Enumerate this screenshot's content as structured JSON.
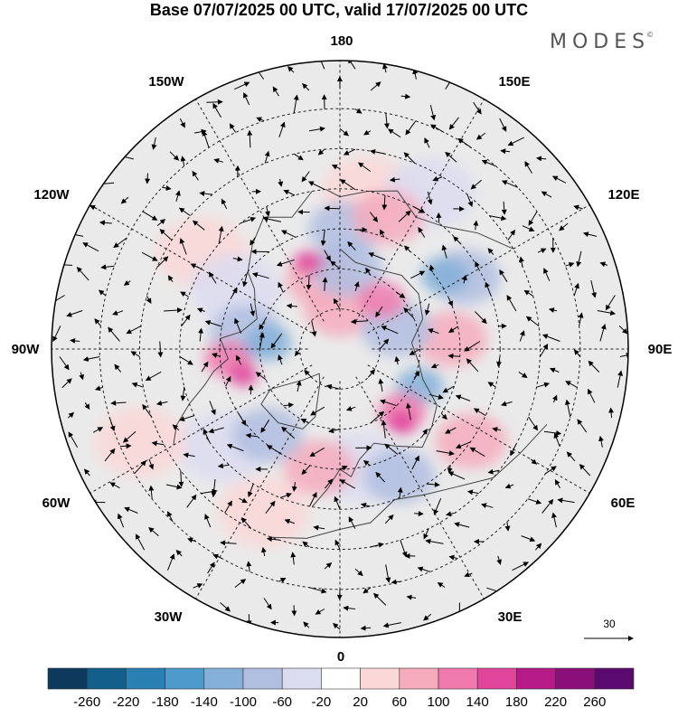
{
  "title": "Base 07/07/2025 00 UTC, valid 17/07/2025 00 UTC",
  "brand": "MODES",
  "brand_mark": "©",
  "longitude_labels": {
    "top": "180",
    "top_left": "150W",
    "top_right": "150E",
    "upper_left": "120W",
    "upper_right": "120E",
    "left": "90W",
    "right": "90E",
    "lower_left": "60W",
    "lower_right": "60E",
    "bottom_left": "30W",
    "bottom_right": "30E",
    "bottom": "0"
  },
  "reference_vector": {
    "label": "30"
  },
  "colorbar": {
    "colors": [
      "#0d3a5c",
      "#135f8c",
      "#2a7fb3",
      "#4d9bcc",
      "#85b0d8",
      "#b0bee0",
      "#dcdcf0",
      "#ffffff",
      "#fbd7d7",
      "#f6abbd",
      "#f07aae",
      "#e0449b",
      "#b51a86",
      "#8a0f7a",
      "#5a0a6e"
    ],
    "tick_labels": [
      "-260",
      "-220",
      "-180",
      "-140",
      "-100",
      "-60",
      "-20",
      "20",
      "60",
      "100",
      "140",
      "180",
      "220",
      "260"
    ]
  },
  "anomaly_colors": {
    "neg_light": "#dcdcf0",
    "neg_mid": "#b0bee0",
    "neg_strong": "#85b0d8",
    "pos_light": "#fbd7d7",
    "pos_mid": "#f6abbd",
    "pos_strong": "#f07aae",
    "pos_max": "#e0449b"
  },
  "anomaly_blobs": [
    {
      "polarity": "pos",
      "level": "mid",
      "lon": -165,
      "colat": 18
    },
    {
      "polarity": "pos",
      "level": "max",
      "lon": -160,
      "colat": 23
    },
    {
      "polarity": "pos",
      "level": "mid",
      "lon": -180,
      "colat": 10
    },
    {
      "polarity": "neg",
      "level": "mid",
      "lon": 175,
      "colat": 20
    },
    {
      "polarity": "neg",
      "level": "mid",
      "lon": 178,
      "colat": 30
    },
    {
      "polarity": "pos",
      "level": "mid",
      "lon": 160,
      "colat": 35
    },
    {
      "polarity": "pos",
      "level": "light",
      "lon": 170,
      "colat": 40
    },
    {
      "polarity": "pos",
      "level": "strong",
      "lon": 140,
      "colat": 16
    },
    {
      "polarity": "neg",
      "level": "strong",
      "lon": 125,
      "colat": 32
    },
    {
      "polarity": "neg",
      "level": "mid",
      "lon": 120,
      "colat": 36
    },
    {
      "polarity": "pos",
      "level": "mid",
      "lon": 95,
      "colat": 28
    },
    {
      "polarity": "neg",
      "level": "mid",
      "lon": 110,
      "colat": 15
    },
    {
      "polarity": "neg",
      "level": "strong",
      "lon": 65,
      "colat": 22
    },
    {
      "polarity": "pos",
      "level": "strong",
      "lon": 45,
      "colat": 22
    },
    {
      "polarity": "pos",
      "level": "max",
      "lon": 40,
      "colat": 24
    },
    {
      "polarity": "pos",
      "level": "mid",
      "lon": 55,
      "colat": 40
    },
    {
      "polarity": "neg",
      "level": "mid",
      "lon": 25,
      "colat": 35
    },
    {
      "polarity": "neg",
      "level": "light",
      "lon": 10,
      "colat": 30
    },
    {
      "polarity": "pos",
      "level": "mid",
      "lon": -10,
      "colat": 30
    },
    {
      "polarity": "pos",
      "level": "light",
      "lon": -25,
      "colat": 45
    },
    {
      "polarity": "neg",
      "level": "mid",
      "lon": -40,
      "colat": 28
    },
    {
      "polarity": "neg",
      "level": "light",
      "lon": -50,
      "colat": 38
    },
    {
      "polarity": "pos",
      "level": "max",
      "lon": -75,
      "colat": 25
    },
    {
      "polarity": "pos",
      "level": "strong",
      "lon": -85,
      "colat": 28
    },
    {
      "polarity": "neg",
      "level": "strong",
      "lon": -95,
      "colat": 18
    },
    {
      "polarity": "neg",
      "level": "mid",
      "lon": -100,
      "colat": 24
    },
    {
      "polarity": "pos",
      "level": "light",
      "lon": -125,
      "colat": 42
    },
    {
      "polarity": "pos",
      "level": "light",
      "lon": -65,
      "colat": 55
    },
    {
      "polarity": "neg",
      "level": "light",
      "lon": -120,
      "colat": 30
    },
    {
      "polarity": "neg",
      "level": "light",
      "lon": 150,
      "colat": 45
    }
  ]
}
